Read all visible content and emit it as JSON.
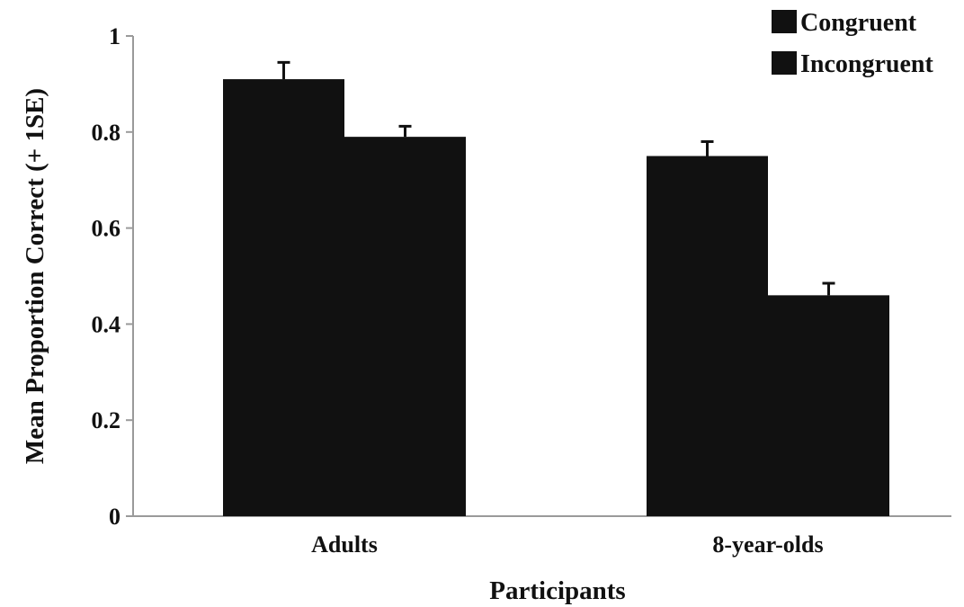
{
  "chart_data": {
    "type": "bar",
    "categories": [
      "Adults",
      "8-year-olds"
    ],
    "series": [
      {
        "name": "Congruent",
        "values": [
          0.91,
          0.75
        ],
        "errors": [
          0.035,
          0.03
        ],
        "color": "#111111"
      },
      {
        "name": "Incongruent",
        "values": [
          0.79,
          0.46
        ],
        "errors": [
          0.022,
          0.025
        ],
        "color": "#111111"
      }
    ],
    "title": "",
    "xlabel": "Participants",
    "ylabel": "Mean Proportion Correct (+ 1SE)",
    "ylim": [
      0,
      1
    ],
    "yticks": [
      "0",
      "0.2",
      "0.4",
      "0.6",
      "0.8",
      "1"
    ],
    "grid": false,
    "legend": "top-right"
  }
}
